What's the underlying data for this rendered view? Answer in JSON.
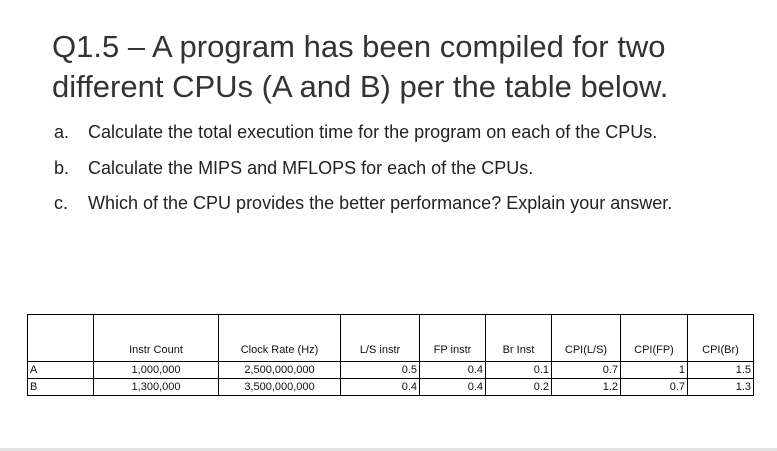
{
  "question": {
    "title": "Q1.5 – A program has been compiled for two different CPUs (A and B) per the table below.",
    "parts": [
      {
        "letter": "a.",
        "text": "Calculate the total execution time for the program on each of the CPUs."
      },
      {
        "letter": "b.",
        "text": "Calculate the MIPS and MFLOPS for each of the CPUs."
      },
      {
        "letter": "c.",
        "text": "Which of the CPU provides the better performance? Explain your answer."
      }
    ]
  },
  "table": {
    "headers": [
      "",
      "Instr Count",
      "Clock Rate (Hz)",
      "L/S instr",
      "FP instr",
      "Br Inst",
      "CPI(L/S)",
      "CPI(FP)",
      "CPI(Br)"
    ],
    "rows": [
      [
        "A",
        "1,000,000",
        "2,500,000,000",
        "0.5",
        "0.4",
        "0.1",
        "0.7",
        "1",
        "1.5"
      ],
      [
        "B",
        "1,300,000",
        "3,500,000,000",
        "0.4",
        "0.4",
        "0.2",
        "1.2",
        "0.7",
        "1.3"
      ]
    ]
  }
}
